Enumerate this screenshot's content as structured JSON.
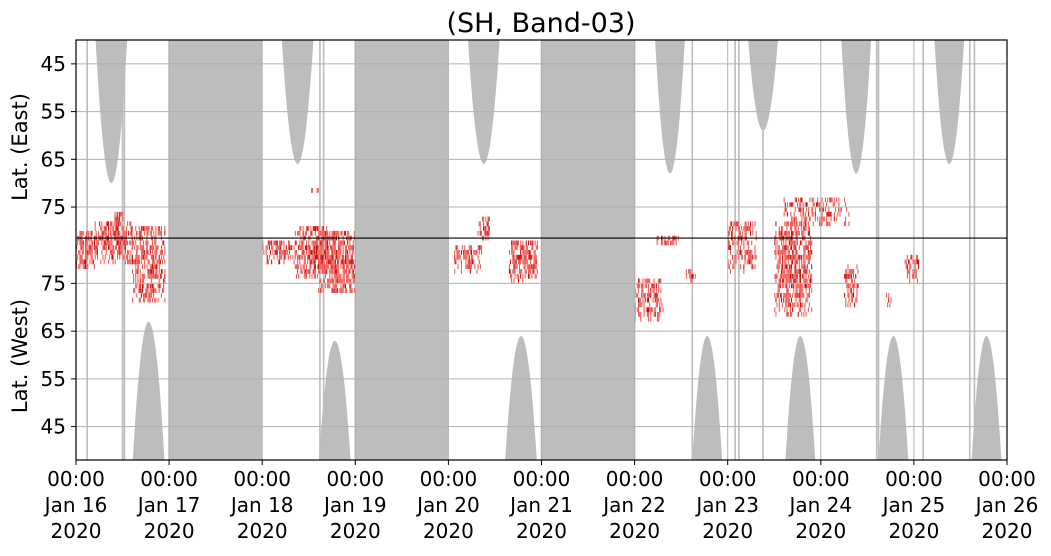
{
  "chart_data": {
    "type": "heatmap",
    "title": "(SH, Band-03)",
    "xlabel": "",
    "ylabels": {
      "upper": "Lat. (East)",
      "lower": "Lat. (West)"
    },
    "x_range_days": [
      0,
      10
    ],
    "x_ticks": [
      {
        "day": 0,
        "time": "00:00",
        "date": "Jan 16",
        "year": "2020"
      },
      {
        "day": 1,
        "time": "00:00",
        "date": "Jan 17",
        "year": "2020"
      },
      {
        "day": 2,
        "time": "00:00",
        "date": "Jan 18",
        "year": "2020"
      },
      {
        "day": 3,
        "time": "00:00",
        "date": "Jan 19",
        "year": "2020"
      },
      {
        "day": 4,
        "time": "00:00",
        "date": "Jan 20",
        "year": "2020"
      },
      {
        "day": 5,
        "time": "00:00",
        "date": "Jan 21",
        "year": "2020"
      },
      {
        "day": 6,
        "time": "00:00",
        "date": "Jan 22",
        "year": "2020"
      },
      {
        "day": 7,
        "time": "00:00",
        "date": "Jan 23",
        "year": "2020"
      },
      {
        "day": 8,
        "time": "00:00",
        "date": "Jan 24",
        "year": "2020"
      },
      {
        "day": 9,
        "time": "00:00",
        "date": "Jan 25",
        "year": "2020"
      },
      {
        "day": 10,
        "time": "00:00",
        "date": "Jan 26",
        "year": "2020"
      }
    ],
    "y_range_index": [
      -88,
      88
    ],
    "y_ticks": [
      {
        "label": "45",
        "index": 78
      },
      {
        "label": "55",
        "index": 58
      },
      {
        "label": "65",
        "index": 38
      },
      {
        "label": "75",
        "index": 18
      },
      {
        "label": "75",
        "index": -14
      },
      {
        "label": "65",
        "index": -34
      },
      {
        "label": "55",
        "index": -54
      },
      {
        "label": "45",
        "index": -74
      }
    ],
    "divider_index": 5,
    "grid": true,
    "colors": {
      "gap": "#bdbdbd",
      "activity_light": "#f0605a",
      "activity_dark": "#c81414",
      "divider": "#000000",
      "grid": "#b0b0b0"
    },
    "gap_bands": [
      {
        "start": 1.0,
        "end": 2.0
      },
      {
        "start": 3.0,
        "end": 4.0
      },
      {
        "start": 5.0,
        "end": 6.0
      }
    ],
    "top_gaps": [
      {
        "center": 0.38,
        "half_width": 0.17,
        "depth": 60
      },
      {
        "center": 2.38,
        "half_width": 0.17,
        "depth": 52
      },
      {
        "center": 4.38,
        "half_width": 0.17,
        "depth": 52
      },
      {
        "center": 6.38,
        "half_width": 0.16,
        "depth": 56
      },
      {
        "center": 7.38,
        "half_width": 0.16,
        "depth": 38
      },
      {
        "center": 8.38,
        "half_width": 0.16,
        "depth": 56
      },
      {
        "center": 9.38,
        "half_width": 0.16,
        "depth": 52
      }
    ],
    "bottom_gaps": [
      {
        "center": 0.78,
        "half_width": 0.17,
        "depth": 58
      },
      {
        "center": 2.78,
        "half_width": 0.17,
        "depth": 50
      },
      {
        "center": 4.78,
        "half_width": 0.17,
        "depth": 52
      },
      {
        "center": 6.78,
        "half_width": 0.16,
        "depth": 52
      },
      {
        "center": 7.78,
        "half_width": 0.16,
        "depth": 52
      },
      {
        "center": 8.78,
        "half_width": 0.16,
        "depth": 52
      },
      {
        "center": 9.78,
        "half_width": 0.16,
        "depth": 52
      }
    ],
    "thin_gap_lines": [
      0.12,
      0.5,
      0.52,
      1.0,
      2.62,
      2.66,
      3.0,
      5.0,
      5.7,
      6.0,
      6.62,
      7.08,
      7.12,
      7.38,
      8.6,
      8.62,
      9.1,
      9.6,
      9.65
    ],
    "activity_clusters": [
      {
        "t0": 0.0,
        "t1": 0.2,
        "y0": -8,
        "y1": 8,
        "density": 0.85
      },
      {
        "t0": 0.2,
        "t1": 0.6,
        "y0": -6,
        "y1": 12,
        "density": 0.8
      },
      {
        "t0": 0.6,
        "t1": 0.95,
        "y0": -22,
        "y1": 10,
        "density": 0.7
      },
      {
        "t0": 0.4,
        "t1": 0.5,
        "y0": 10,
        "y1": 16,
        "density": 0.6
      },
      {
        "t0": 2.0,
        "t1": 2.35,
        "y0": -6,
        "y1": 4,
        "density": 0.75
      },
      {
        "t0": 2.35,
        "t1": 2.7,
        "y0": -12,
        "y1": 10,
        "density": 0.75
      },
      {
        "t0": 2.6,
        "t1": 3.0,
        "y0": -18,
        "y1": 8,
        "density": 0.8
      },
      {
        "t0": 2.5,
        "t1": 2.6,
        "y0": 24,
        "y1": 26,
        "density": 0.5
      },
      {
        "t0": 4.05,
        "t1": 4.35,
        "y0": -10,
        "y1": 2,
        "density": 0.6
      },
      {
        "t0": 4.3,
        "t1": 4.45,
        "y0": 4,
        "y1": 14,
        "density": 0.5
      },
      {
        "t0": 4.65,
        "t1": 4.95,
        "y0": -14,
        "y1": 4,
        "density": 0.8
      },
      {
        "t0": 6.0,
        "t1": 6.3,
        "y0": -30,
        "y1": -12,
        "density": 0.6
      },
      {
        "t0": 6.2,
        "t1": 6.5,
        "y0": 2,
        "y1": 6,
        "density": 0.5
      },
      {
        "t0": 6.55,
        "t1": 6.65,
        "y0": -14,
        "y1": -8,
        "density": 0.5
      },
      {
        "t0": 7.0,
        "t1": 7.3,
        "y0": -10,
        "y1": 12,
        "density": 0.55
      },
      {
        "t0": 7.5,
        "t1": 7.9,
        "y0": -28,
        "y1": 12,
        "density": 0.75
      },
      {
        "t0": 7.6,
        "t1": 8.3,
        "y0": 10,
        "y1": 22,
        "density": 0.5
      },
      {
        "t0": 8.25,
        "t1": 8.4,
        "y0": -24,
        "y1": -6,
        "density": 0.6
      },
      {
        "t0": 8.7,
        "t1": 8.75,
        "y0": -24,
        "y1": -18,
        "density": 0.5
      },
      {
        "t0": 8.9,
        "t1": 9.05,
        "y0": -14,
        "y1": -2,
        "density": 0.55
      }
    ]
  }
}
